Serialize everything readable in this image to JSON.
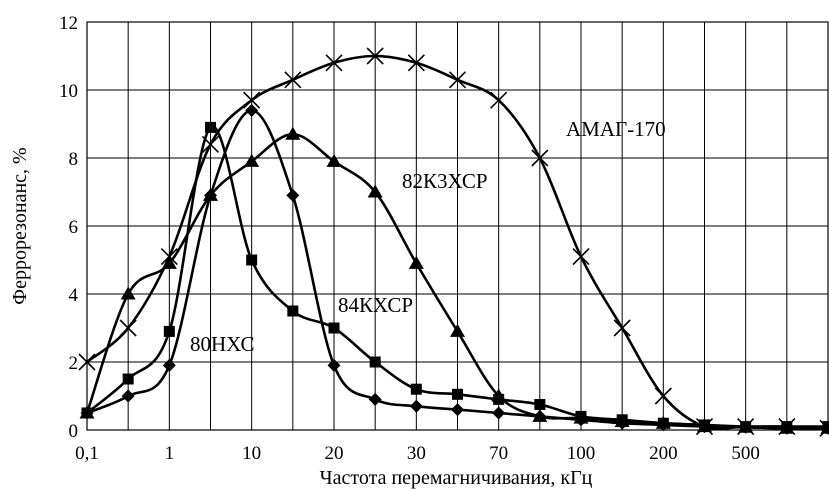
{
  "chart_data": {
    "type": "line",
    "title": "",
    "xlabel": "Частота перемагничивания, кГц",
    "ylabel": "Феррорезонанс, %",
    "ylim": [
      0,
      12
    ],
    "yticks": [
      "0",
      "2",
      "4",
      "6",
      "8",
      "10",
      "12"
    ],
    "x_axis_scale": "categorical",
    "xtick_labels": [
      "0,1",
      "1",
      "10",
      "20",
      "30",
      "70",
      "100",
      "200",
      "500"
    ],
    "grid": true,
    "legend": "none",
    "series": [
      {
        "label": "80НХС",
        "marker": "diamond",
        "points": [
          [
            0,
            0.5
          ],
          [
            1,
            1.0
          ],
          [
            2,
            1.9
          ],
          [
            3,
            6.9
          ],
          [
            4,
            9.4
          ],
          [
            5,
            6.9
          ],
          [
            6,
            1.9
          ],
          [
            7,
            0.9
          ],
          [
            8,
            0.7
          ],
          [
            9,
            0.6
          ],
          [
            10,
            0.5
          ],
          [
            11,
            0.4
          ],
          [
            12,
            0.3
          ],
          [
            13,
            0.2
          ],
          [
            14,
            0.15
          ],
          [
            15,
            0.1
          ],
          [
            16,
            0.08
          ],
          [
            17,
            0.05
          ],
          [
            18,
            0.05
          ]
        ]
      },
      {
        "label": "84КХСР",
        "marker": "square",
        "points": [
          [
            0,
            0.5
          ],
          [
            1,
            1.5
          ],
          [
            2,
            2.9
          ],
          [
            3,
            8.9
          ],
          [
            4,
            5.0
          ],
          [
            5,
            3.5
          ],
          [
            6,
            3.0
          ],
          [
            7,
            2.0
          ],
          [
            8,
            1.2
          ],
          [
            9,
            1.05
          ],
          [
            10,
            0.9
          ],
          [
            11,
            0.75
          ],
          [
            12,
            0.4
          ],
          [
            13,
            0.3
          ],
          [
            14,
            0.2
          ],
          [
            15,
            0.15
          ],
          [
            16,
            0.1
          ],
          [
            17,
            0.1
          ],
          [
            18,
            0.1
          ]
        ]
      },
      {
        "label": "82К3ХСР",
        "marker": "triangle",
        "points": [
          [
            0,
            0.5
          ],
          [
            1,
            4.0
          ],
          [
            2,
            4.9
          ],
          [
            3,
            6.9
          ],
          [
            4,
            7.9
          ],
          [
            5,
            8.7
          ],
          [
            6,
            7.9
          ],
          [
            7,
            7.0
          ],
          [
            8,
            4.9
          ],
          [
            9,
            2.9
          ],
          [
            10,
            1.0
          ],
          [
            11,
            0.4
          ],
          [
            12,
            0.35
          ],
          [
            13,
            0.25
          ],
          [
            14,
            0.2
          ],
          [
            15,
            0.1
          ],
          [
            16,
            0.08
          ],
          [
            17,
            0.05
          ],
          [
            18,
            0.05
          ]
        ]
      },
      {
        "label": "АМАГ-170",
        "marker": "x",
        "points": [
          [
            0,
            2.0
          ],
          [
            1,
            3.0
          ],
          [
            2,
            5.1
          ],
          [
            3,
            8.4
          ],
          [
            4,
            9.7
          ],
          [
            5,
            10.3
          ],
          [
            6,
            10.8
          ],
          [
            7,
            11.0
          ],
          [
            8,
            10.8
          ],
          [
            9,
            10.3
          ],
          [
            10,
            9.7
          ],
          [
            11,
            8.0
          ],
          [
            12,
            5.1
          ],
          [
            13,
            3.0
          ],
          [
            14,
            1.0
          ],
          [
            15,
            0.1
          ],
          [
            16,
            0.1
          ],
          [
            17,
            0.1
          ],
          [
            18,
            0.05
          ]
        ]
      }
    ]
  }
}
